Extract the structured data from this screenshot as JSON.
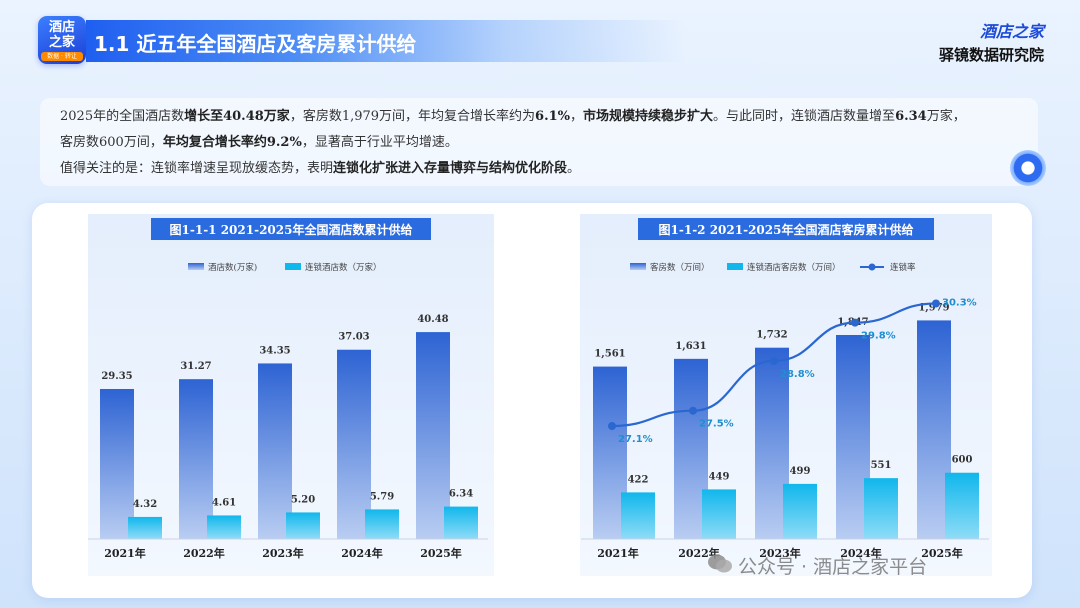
{
  "header": {
    "logo_line1": "酒店",
    "logo_line2": "之家",
    "logo_tag": "数据 · 转让",
    "title": "1.1 近五年全国酒店及客房累计供给",
    "brand_name": "酒店之家",
    "brand_sub": "驿镜数据研究院"
  },
  "intro": {
    "p1_a": "2025年的全国酒店数",
    "p1_b": "增长至40.48万家",
    "p1_c": "，客房数1,979万间，年均复合增长率约为",
    "p1_d": "6.1%",
    "p1_e": "，",
    "p1_f": "市场规模持续稳步扩大",
    "p1_g": "。与此同时，连锁酒店数量增至",
    "p1_h": "6.34",
    "p1_i": "万家，",
    "p2_a": "客房数600万间，",
    "p2_b": "年均复合增长率约9.2%",
    "p2_c": "，显著高于行业平均增速。",
    "p3_a": "值得关注的是：连锁率增速呈现放缓态势，表明",
    "p3_b": "连锁化扩张进入存量博弈与结构优化阶段",
    "p3_c": "。"
  },
  "watermark": "公众号 · 酒店之家平台",
  "colors": {
    "bar_dark": "#2d63d3",
    "bar_light": "#10b7ec",
    "line": "#2a67d0",
    "title_bg": "#2b6be0"
  },
  "chart_data": [
    {
      "type": "bar",
      "title": "图1-1-1 2021-2025年全国酒店数累计供给",
      "categories": [
        "2021年",
        "2022年",
        "2023年",
        "2024年",
        "2025年"
      ],
      "series": [
        {
          "name": "酒店数(万家)",
          "values": [
            29.35,
            31.27,
            34.35,
            37.03,
            40.48
          ]
        },
        {
          "name": "连锁酒店数（万家）",
          "values": [
            4.32,
            4.61,
            5.2,
            5.79,
            6.34
          ]
        }
      ],
      "labels": [
        [
          "29.35",
          "31.27",
          "34.35",
          "37.03",
          "40.48"
        ],
        [
          "4.32",
          "4.61",
          "5.20",
          "5.79",
          "6.34"
        ]
      ],
      "ylim": [
        0,
        45
      ],
      "legend": "top"
    },
    {
      "type": "bar",
      "title": "图1-1-2  2021-2025年全国酒店客房累计供给",
      "categories": [
        "2021年",
        "2022年",
        "2023年",
        "2024年",
        "2025年"
      ],
      "series": [
        {
          "name": "客房数（万间）",
          "values": [
            1561,
            1631,
            1732,
            1847,
            1979
          ]
        },
        {
          "name": "连锁酒店客房数（万间）",
          "values": [
            422,
            449,
            499,
            551,
            600
          ]
        }
      ],
      "labels": [
        [
          "1,561",
          "1,631",
          "1,732",
          "1,847",
          "1,979"
        ],
        [
          "422",
          "449",
          "499",
          "551",
          "600"
        ]
      ],
      "line_series": {
        "name": "连锁率",
        "values": [
          27.1,
          27.5,
          28.8,
          29.8,
          30.3
        ],
        "labels": [
          "27.1%",
          "27.5%",
          "28.8%",
          "29.8%",
          "30.3%"
        ]
      },
      "ylim": [
        0,
        2200
      ],
      "legend": "top"
    }
  ]
}
